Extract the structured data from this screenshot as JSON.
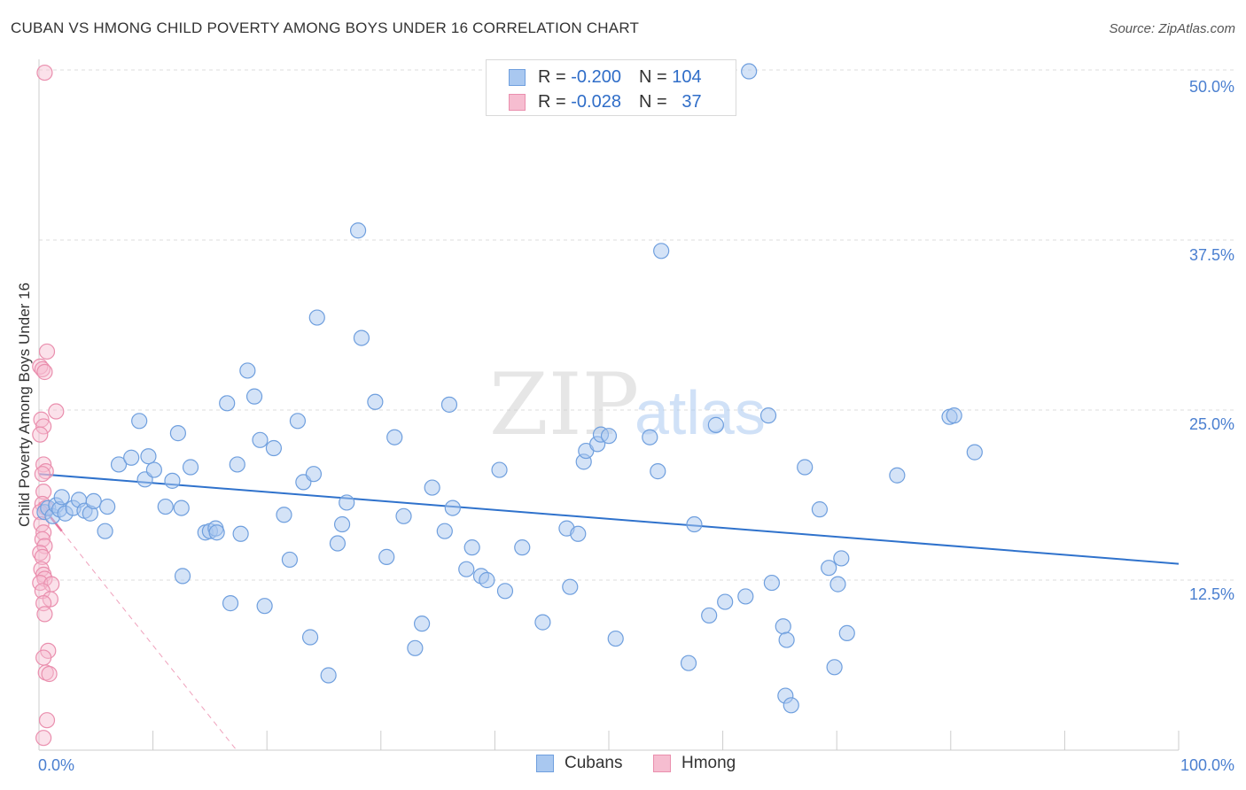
{
  "title": "CUBAN VS HMONG CHILD POVERTY AMONG BOYS UNDER 16 CORRELATION CHART",
  "source": "Source: ZipAtlas.com",
  "watermark": {
    "zip": "ZIP",
    "atlas": "atlas"
  },
  "colors": {
    "blue_fill": "#a9c8f0",
    "blue_stroke": "#6f9fde",
    "blue_line": "#2f72cc",
    "pink_fill": "#f6bdd0",
    "pink_stroke": "#ea8fae",
    "pink_line": "#e8799f",
    "grid": "#dddddd",
    "axis_text": "#4a7fd0"
  },
  "stats": {
    "rows": [
      {
        "r_label": "R = ",
        "r_value": "-0.200",
        "n_label": "N = ",
        "n_value": "104"
      },
      {
        "r_label": "R = ",
        "r_value": "-0.028",
        "n_label": "N = ",
        "n_value": "  37"
      }
    ]
  },
  "legend": {
    "cubans": "Cubans",
    "hmong": "Hmong"
  },
  "chart_data": {
    "type": "scatter",
    "title": "CUBAN VS HMONG CHILD POVERTY AMONG BOYS UNDER 16 CORRELATION CHART",
    "xlabel": "",
    "ylabel": "Child Poverty Among Boys Under 16",
    "xlim": [
      0,
      100
    ],
    "ylim": [
      0,
      50
    ],
    "x_tick_labels": [
      "0.0%",
      "100.0%"
    ],
    "y_ticks": [
      12.5,
      25.0,
      37.5,
      50.0
    ],
    "y_tick_labels": [
      "12.5%",
      "25.0%",
      "37.5%",
      "50.0%"
    ],
    "grid": true,
    "legend_position": "bottom-center",
    "series": [
      {
        "name": "Cubans",
        "r": -0.2,
        "n": 104,
        "trend": {
          "x": [
            0,
            100
          ],
          "y": [
            20.3,
            13.7
          ]
        },
        "points": [
          [
            0.5,
            17.5
          ],
          [
            0.8,
            17.8
          ],
          [
            1.2,
            17.2
          ],
          [
            1.5,
            18
          ],
          [
            1.8,
            17.7
          ],
          [
            2,
            18.6
          ],
          [
            2.3,
            17.4
          ],
          [
            3,
            17.8
          ],
          [
            3.5,
            18.4
          ],
          [
            4,
            17.6
          ],
          [
            4.5,
            17.4
          ],
          [
            4.8,
            18.3
          ],
          [
            5.8,
            16.1
          ],
          [
            6,
            17.9
          ],
          [
            7,
            21
          ],
          [
            8.1,
            21.5
          ],
          [
            8.8,
            24.2
          ],
          [
            9.3,
            19.9
          ],
          [
            9.6,
            21.6
          ],
          [
            10.1,
            20.6
          ],
          [
            11.1,
            17.9
          ],
          [
            11.7,
            19.8
          ],
          [
            12.2,
            23.3
          ],
          [
            12.5,
            17.8
          ],
          [
            12.6,
            12.8
          ],
          [
            13.3,
            20.8
          ],
          [
            14.6,
            16
          ],
          [
            15,
            16.1
          ],
          [
            15.5,
            16.3
          ],
          [
            15.6,
            16
          ],
          [
            16.5,
            25.5
          ],
          [
            16.8,
            10.8
          ],
          [
            17.4,
            21
          ],
          [
            17.7,
            15.9
          ],
          [
            18.3,
            27.9
          ],
          [
            18.9,
            26
          ],
          [
            19.4,
            22.8
          ],
          [
            19.8,
            10.6
          ],
          [
            20.6,
            22.2
          ],
          [
            21.5,
            17.3
          ],
          [
            22,
            14
          ],
          [
            22.7,
            24.2
          ],
          [
            23.2,
            19.7
          ],
          [
            23.8,
            8.3
          ],
          [
            24.1,
            20.3
          ],
          [
            24.4,
            31.8
          ],
          [
            25.4,
            5.5
          ],
          [
            26.2,
            15.2
          ],
          [
            26.6,
            16.6
          ],
          [
            27,
            18.2
          ],
          [
            28,
            38.2
          ],
          [
            28.3,
            30.3
          ],
          [
            29.5,
            25.6
          ],
          [
            30.5,
            14.2
          ],
          [
            31.2,
            23
          ],
          [
            32,
            17.2
          ],
          [
            33,
            7.5
          ],
          [
            33.6,
            9.3
          ],
          [
            34.5,
            19.3
          ],
          [
            35.6,
            16.1
          ],
          [
            36,
            25.4
          ],
          [
            36.3,
            17.8
          ],
          [
            37.5,
            13.3
          ],
          [
            38,
            14.9
          ],
          [
            38.8,
            12.8
          ],
          [
            39.3,
            12.5
          ],
          [
            40.4,
            20.6
          ],
          [
            40.9,
            11.7
          ],
          [
            42.4,
            14.9
          ],
          [
            44.2,
            9.4
          ],
          [
            46.3,
            16.3
          ],
          [
            46.6,
            12
          ],
          [
            47.3,
            15.9
          ],
          [
            47.8,
            21.2
          ],
          [
            48,
            22
          ],
          [
            49,
            22.5
          ],
          [
            49.3,
            23.2
          ],
          [
            50,
            23.1
          ],
          [
            50.6,
            8.2
          ],
          [
            53.6,
            23
          ],
          [
            54.3,
            20.5
          ],
          [
            54.6,
            36.7
          ],
          [
            57,
            6.4
          ],
          [
            57.5,
            16.6
          ],
          [
            58.8,
            9.9
          ],
          [
            59.4,
            23.9
          ],
          [
            60.2,
            10.9
          ],
          [
            62,
            11.3
          ],
          [
            62.3,
            49.9
          ],
          [
            64,
            24.6
          ],
          [
            64.3,
            12.3
          ],
          [
            65.3,
            9.1
          ],
          [
            65.6,
            8.1
          ],
          [
            65.5,
            4
          ],
          [
            66,
            3.3
          ],
          [
            67.2,
            20.8
          ],
          [
            68.5,
            17.7
          ],
          [
            69.3,
            13.4
          ],
          [
            69.8,
            6.1
          ],
          [
            70.1,
            12.2
          ],
          [
            70.4,
            14.1
          ],
          [
            70.9,
            8.6
          ],
          [
            75.3,
            20.2
          ],
          [
            79.9,
            24.5
          ],
          [
            80.3,
            24.6
          ],
          [
            82.1,
            21.9
          ]
        ]
      },
      {
        "name": "Hmong",
        "r": -0.028,
        "n": 37,
        "trend": {
          "x": [
            0,
            2
          ],
          "y": [
            18.2,
            16.1
          ]
        },
        "points": [
          [
            0.5,
            49.8
          ],
          [
            0.1,
            28.2
          ],
          [
            0.3,
            28
          ],
          [
            0.5,
            27.8
          ],
          [
            0.7,
            29.3
          ],
          [
            1.5,
            24.9
          ],
          [
            0.2,
            24.3
          ],
          [
            0.4,
            23.8
          ],
          [
            0.1,
            23.2
          ],
          [
            0.4,
            21
          ],
          [
            0.6,
            20.5
          ],
          [
            0.3,
            20.3
          ],
          [
            0.4,
            19
          ],
          [
            0.3,
            18.1
          ],
          [
            0.6,
            17.8
          ],
          [
            0.1,
            17.5
          ],
          [
            0.2,
            16.6
          ],
          [
            0.4,
            16
          ],
          [
            0.3,
            15.5
          ],
          [
            0.5,
            15
          ],
          [
            0.1,
            14.5
          ],
          [
            0.3,
            14.2
          ],
          [
            0.2,
            13.3
          ],
          [
            0.4,
            12.9
          ],
          [
            0.5,
            12.6
          ],
          [
            0.1,
            12.3
          ],
          [
            1.1,
            12.2
          ],
          [
            0.3,
            11.7
          ],
          [
            1,
            11.1
          ],
          [
            0.4,
            10.8
          ],
          [
            0.5,
            10
          ],
          [
            0.8,
            7.3
          ],
          [
            0.4,
            6.8
          ],
          [
            0.6,
            5.7
          ],
          [
            0.9,
            5.6
          ],
          [
            0.7,
            2.2
          ],
          [
            0.4,
            0.9
          ]
        ]
      }
    ]
  }
}
